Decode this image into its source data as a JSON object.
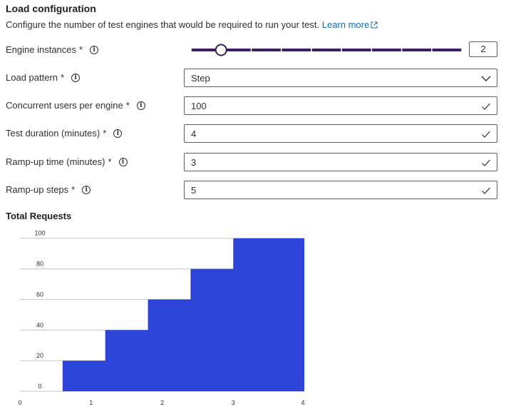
{
  "section": {
    "title": "Load configuration",
    "description": "Configure the number of test engines that would be required to run your test.",
    "learn_more": "Learn more"
  },
  "fields": {
    "engine_instances": {
      "label": "Engine instances",
      "required": "*",
      "value": "2",
      "slider_min": 1,
      "slider_max": 10
    },
    "load_pattern": {
      "label": "Load pattern",
      "required": "*",
      "value": "Step"
    },
    "concurrent_users": {
      "label": "Concurrent users per engine",
      "required": "*",
      "value": "100"
    },
    "test_duration": {
      "label": "Test duration (minutes)",
      "required": "*",
      "value": "4"
    },
    "rampup_time": {
      "label": "Ramp-up time (minutes)",
      "required": "*",
      "value": "3"
    },
    "rampup_steps": {
      "label": "Ramp-up steps",
      "required": "*",
      "value": "5"
    }
  },
  "icons": {
    "info": "info-icon",
    "check": "checkmark-icon",
    "chevron": "chevron-down-icon",
    "external": "external-link-icon"
  },
  "colors": {
    "accent": "#0f6cbd",
    "slider": "#3b1f5f",
    "chart_fill": "#2d44d9",
    "check": "#107c10"
  },
  "chart_data": {
    "type": "area",
    "title": "Total Requests",
    "step": true,
    "x": [
      0,
      0.6,
      0.6,
      1.2,
      1.2,
      1.8,
      1.8,
      2.4,
      2.4,
      3,
      3,
      4
    ],
    "y": [
      0,
      0,
      20,
      20,
      40,
      40,
      60,
      60,
      80,
      80,
      100,
      100
    ],
    "xticks": [
      "0",
      "1",
      "2",
      "3",
      "4"
    ],
    "yticks": [
      "0",
      "20",
      "40",
      "60",
      "80",
      "100"
    ],
    "xlim": [
      0,
      4
    ],
    "ylim": [
      0,
      105
    ],
    "grid": true
  }
}
